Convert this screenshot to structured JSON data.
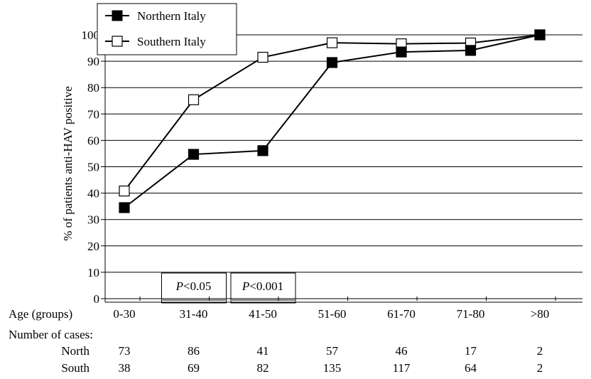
{
  "chart_data": {
    "type": "line",
    "xlabel": "Age (groups)",
    "ylabel": "% of patients anti-HAV positive",
    "categories": [
      "0-30",
      "31-40",
      "41-50",
      "51-60",
      "61-70",
      "71-80",
      ">80"
    ],
    "ylim": [
      0,
      100
    ],
    "yticks": [
      0,
      10,
      20,
      30,
      40,
      50,
      60,
      70,
      80,
      90,
      100
    ],
    "grid": "horizontal",
    "legend_position": "top-left",
    "series": [
      {
        "name": "Northern Italy",
        "marker": "filled-square",
        "color": "#000000",
        "values": [
          34.5,
          54.7,
          56.1,
          89.5,
          93.5,
          94.1,
          100
        ]
      },
      {
        "name": "Southern Italy",
        "marker": "open-square",
        "color": "#000000",
        "values": [
          40.8,
          75.4,
          91.5,
          97.0,
          96.6,
          96.9,
          100
        ]
      }
    ],
    "annotations": [
      {
        "text_p": "P",
        "text_rest": "<0.05",
        "category": "31-40"
      },
      {
        "text_p": "P",
        "text_rest": "<0.001",
        "category": "41-50"
      }
    ],
    "cases_table": {
      "title": "Number of cases:",
      "rows": [
        {
          "label": "North",
          "values": [
            "73",
            "86",
            "41",
            "57",
            "46",
            "17",
            "2"
          ]
        },
        {
          "label": "South",
          "values": [
            "38",
            "69",
            "82",
            "135",
            "117",
            "64",
            "2"
          ]
        }
      ]
    }
  }
}
